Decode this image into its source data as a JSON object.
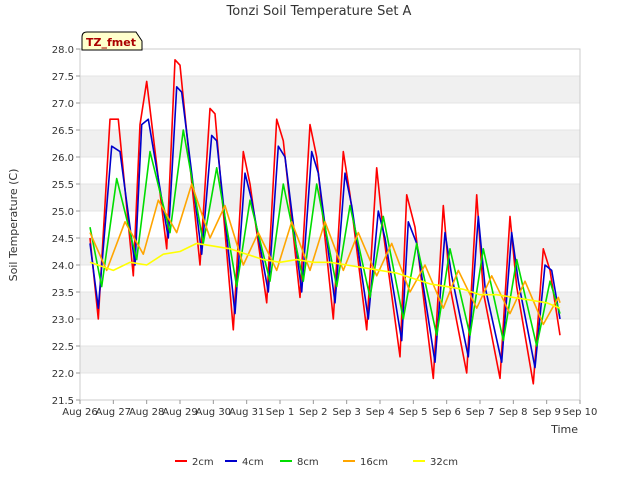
{
  "chart_data": {
    "type": "line",
    "title": "Tonzi Soil Temperature Set A",
    "xlabel": "Time",
    "ylabel": "Soil Temperature (C)",
    "ylim": [
      21.5,
      28.0
    ],
    "y_ticks": [
      "21.5",
      "22.0",
      "22.5",
      "23.0",
      "23.5",
      "24.0",
      "24.5",
      "25.0",
      "25.5",
      "26.0",
      "26.5",
      "27.0",
      "27.5",
      "28.0"
    ],
    "x_range_days": [
      0,
      15
    ],
    "x_ticks": [
      "Aug 26",
      "Aug 27",
      "Aug 28",
      "Aug 29",
      "Aug 30",
      "Aug 31",
      "Sep 1",
      "Sep 2",
      "Sep 3",
      "Sep 4",
      "Sep 5",
      "Sep 6",
      "Sep 7",
      "Sep 8",
      "Sep 9",
      "Sep 10"
    ],
    "grid": "horizontal bands",
    "legend_position": "bottom-center",
    "annotation": "TZ_fmet",
    "series": [
      {
        "name": "2cm",
        "color": "#ff0000",
        "x": [
          0.3,
          0.55,
          0.9,
          1.15,
          1.6,
          1.8,
          2.0,
          2.6,
          2.85,
          3.0,
          3.6,
          3.9,
          4.05,
          4.6,
          4.9,
          5.1,
          5.6,
          5.9,
          6.1,
          6.6,
          6.9,
          7.1,
          7.6,
          7.9,
          8.1,
          8.6,
          8.9,
          9.1,
          9.6,
          9.8,
          10.05,
          10.6,
          10.9,
          11.1,
          11.6,
          11.9,
          12.1,
          12.6,
          12.9,
          13.1,
          13.6,
          13.9,
          14.1,
          14.4
        ],
        "values": [
          24.5,
          23.0,
          26.7,
          26.7,
          23.8,
          26.6,
          27.4,
          24.3,
          27.8,
          27.7,
          24.0,
          26.9,
          26.8,
          22.8,
          26.1,
          25.5,
          23.3,
          26.7,
          26.3,
          23.4,
          26.6,
          26.0,
          23.0,
          26.1,
          25.3,
          22.8,
          25.8,
          24.6,
          22.3,
          25.3,
          24.7,
          21.9,
          25.1,
          23.6,
          22.0,
          25.3,
          23.5,
          21.9,
          24.9,
          23.6,
          21.8,
          24.3,
          23.9,
          22.7
        ]
      },
      {
        "name": "4cm",
        "color": "#0000cc",
        "x": [
          0.3,
          0.55,
          0.95,
          1.2,
          1.65,
          1.85,
          2.05,
          2.65,
          2.9,
          3.05,
          3.65,
          3.95,
          4.1,
          4.65,
          4.95,
          5.15,
          5.65,
          5.95,
          6.15,
          6.65,
          6.95,
          7.15,
          7.65,
          7.95,
          8.15,
          8.65,
          8.95,
          9.15,
          9.65,
          9.85,
          10.1,
          10.65,
          10.95,
          11.15,
          11.65,
          11.95,
          12.15,
          12.65,
          12.95,
          13.15,
          13.65,
          13.95,
          14.15,
          14.4
        ],
        "values": [
          24.4,
          23.2,
          26.2,
          26.1,
          24.0,
          26.6,
          26.7,
          24.5,
          27.3,
          27.2,
          24.2,
          26.4,
          26.3,
          23.1,
          25.7,
          25.2,
          23.5,
          26.2,
          26.0,
          23.5,
          26.1,
          25.7,
          23.3,
          25.7,
          25.1,
          23.0,
          25.0,
          24.5,
          22.6,
          24.8,
          24.4,
          22.2,
          24.6,
          23.8,
          22.3,
          24.9,
          23.6,
          22.2,
          24.6,
          23.7,
          22.1,
          24.0,
          23.9,
          23.0
        ]
      },
      {
        "name": "8cm",
        "color": "#00dd00",
        "x": [
          0.3,
          0.65,
          1.1,
          1.7,
          2.1,
          2.7,
          3.1,
          3.7,
          4.1,
          4.7,
          5.1,
          5.7,
          6.1,
          6.7,
          7.1,
          7.7,
          8.1,
          8.7,
          9.1,
          9.7,
          10.1,
          10.7,
          11.1,
          11.7,
          12.1,
          12.7,
          13.1,
          13.7,
          14.1,
          14.4
        ],
        "values": [
          24.7,
          23.6,
          25.6,
          24.1,
          26.1,
          24.6,
          26.5,
          24.4,
          25.8,
          23.6,
          25.2,
          23.7,
          25.5,
          23.7,
          25.5,
          23.6,
          25.1,
          23.4,
          24.9,
          23.0,
          24.4,
          22.7,
          24.3,
          22.7,
          24.3,
          22.6,
          24.1,
          22.5,
          23.7,
          23.1
        ]
      },
      {
        "name": "16cm",
        "color": "#ffa500",
        "x": [
          0.3,
          0.8,
          1.35,
          1.9,
          2.35,
          2.9,
          3.35,
          3.9,
          4.35,
          4.9,
          5.35,
          5.9,
          6.35,
          6.9,
          7.35,
          7.9,
          8.35,
          8.9,
          9.35,
          9.9,
          10.35,
          10.9,
          11.35,
          11.9,
          12.35,
          12.9,
          13.35,
          13.9,
          14.35,
          14.4
        ],
        "values": [
          24.6,
          23.9,
          24.8,
          24.2,
          25.2,
          24.6,
          25.5,
          24.5,
          25.1,
          24.0,
          24.6,
          23.9,
          24.8,
          23.9,
          24.8,
          23.9,
          24.6,
          23.8,
          24.4,
          23.5,
          24.0,
          23.2,
          23.9,
          23.2,
          23.8,
          23.1,
          23.7,
          22.9,
          23.4,
          23.3
        ]
      },
      {
        "name": "32cm",
        "color": "#ffff00",
        "x": [
          0.3,
          1.0,
          1.5,
          2.0,
          2.5,
          3.0,
          3.5,
          4.0,
          4.5,
          5.0,
          5.5,
          6.0,
          6.5,
          7.0,
          7.5,
          8.0,
          8.5,
          9.0,
          9.5,
          10.0,
          10.5,
          11.0,
          11.5,
          12.0,
          12.5,
          13.0,
          13.5,
          14.0,
          14.4
        ],
        "values": [
          24.05,
          23.9,
          24.05,
          24.0,
          24.2,
          24.25,
          24.4,
          24.35,
          24.3,
          24.2,
          24.1,
          24.05,
          24.1,
          24.05,
          24.05,
          24.0,
          23.95,
          23.9,
          23.85,
          23.75,
          23.65,
          23.6,
          23.55,
          23.45,
          23.45,
          23.4,
          23.35,
          23.3,
          23.2
        ]
      }
    ]
  }
}
